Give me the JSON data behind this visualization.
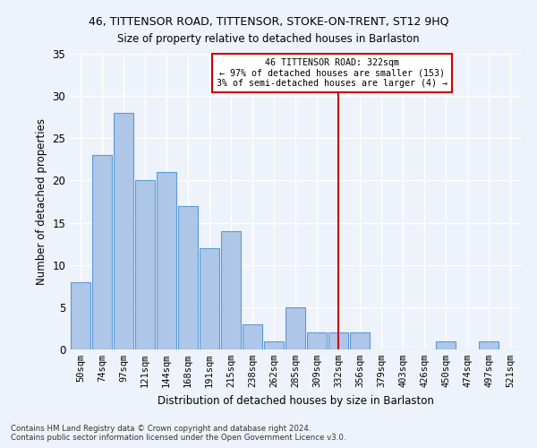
{
  "title": "46, TITTENSOR ROAD, TITTENSOR, STOKE-ON-TRENT, ST12 9HQ",
  "subtitle": "Size of property relative to detached houses in Barlaston",
  "xlabel": "Distribution of detached houses by size in Barlaston",
  "ylabel": "Number of detached properties",
  "bar_color": "#aec6e8",
  "bar_edge_color": "#5b9bd5",
  "background_color": "#eef2fa",
  "grid_color": "#ffffff",
  "categories": [
    "50sqm",
    "74sqm",
    "97sqm",
    "121sqm",
    "144sqm",
    "168sqm",
    "191sqm",
    "215sqm",
    "238sqm",
    "262sqm",
    "285sqm",
    "309sqm",
    "332sqm",
    "356sqm",
    "379sqm",
    "403sqm",
    "426sqm",
    "450sqm",
    "474sqm",
    "497sqm",
    "521sqm"
  ],
  "values": [
    8,
    23,
    28,
    20,
    21,
    17,
    12,
    14,
    3,
    1,
    5,
    2,
    2,
    2,
    0,
    0,
    0,
    1,
    0,
    1,
    0
  ],
  "ylim": [
    0,
    35
  ],
  "yticks": [
    0,
    5,
    10,
    15,
    20,
    25,
    30,
    35
  ],
  "vline_x": 12.0,
  "vline_color": "#cc0000",
  "annotation_text": "46 TITTENSOR ROAD: 322sqm\n← 97% of detached houses are smaller (153)\n3% of semi-detached houses are larger (4) →",
  "annotation_box_color": "#cc0000",
  "footnote1": "Contains HM Land Registry data © Crown copyright and database right 2024.",
  "footnote2": "Contains public sector information licensed under the Open Government Licence v3.0."
}
